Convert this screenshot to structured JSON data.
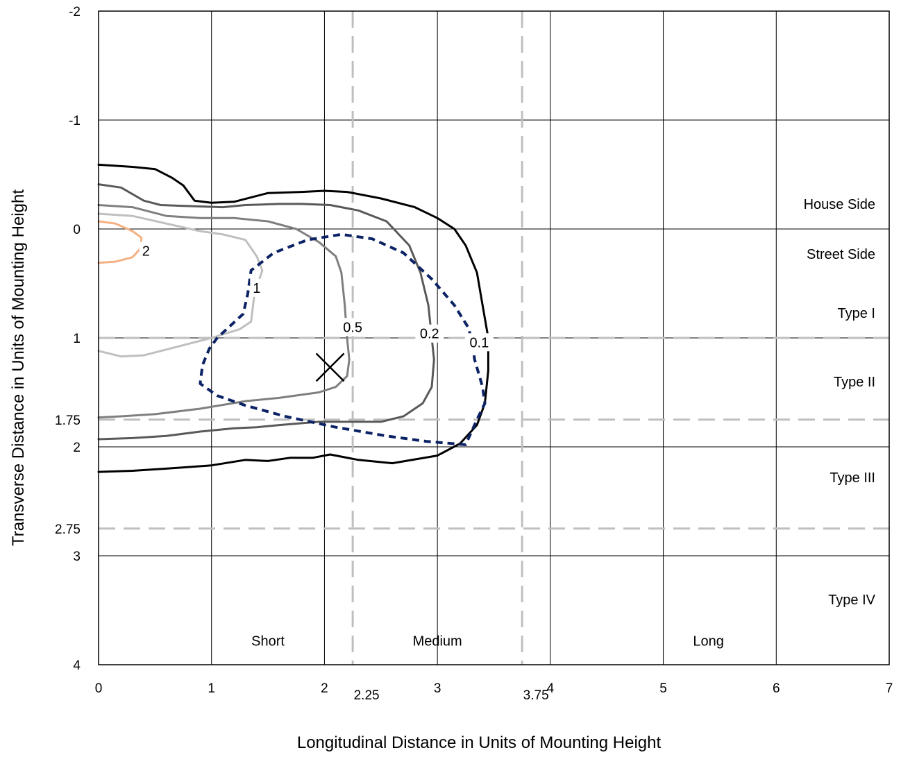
{
  "chart_data": {
    "type": "line",
    "subtype": "isofootcandle",
    "xlabel": "Longitudinal Distance in Units of Mounting Height",
    "ylabel": "Transverse Distance in Units of Mounting Height",
    "xlim": [
      0,
      7
    ],
    "ylim": [
      -2,
      4
    ],
    "y_inverted": true,
    "grid": true,
    "x_ticks": [
      0,
      1,
      2,
      3,
      4,
      5,
      6,
      7
    ],
    "y_ticks": [
      -2,
      -1,
      0,
      1,
      2,
      3,
      4
    ],
    "extra_x_ticks": [
      2.25,
      3.75
    ],
    "extra_y_ticks": [
      1.75,
      2.75
    ],
    "reference_lines": {
      "vertical": [
        2.25,
        3.75
      ],
      "horizontal": [
        1,
        1.75,
        2.75
      ],
      "color": "#bfbfbf"
    },
    "zone_labels": [
      {
        "text": "House Side",
        "x": 6.85,
        "y": -0.23
      },
      {
        "text": "Street Side",
        "x": 6.85,
        "y": 0.23
      },
      {
        "text": "Type I",
        "x": 6.85,
        "y": 0.77
      },
      {
        "text": "Type II",
        "x": 6.85,
        "y": 1.4
      },
      {
        "text": "Type III",
        "x": 6.85,
        "y": 2.28
      },
      {
        "text": "Type IV",
        "x": 6.85,
        "y": 3.4
      },
      {
        "text": "Short",
        "x": 1.5,
        "y": 3.78
      },
      {
        "text": "Medium",
        "x": 3.0,
        "y": 3.78
      },
      {
        "text": "Long",
        "x": 5.4,
        "y": 3.78
      }
    ],
    "max_candela_marker": {
      "x": 2.05,
      "y": 1.27
    },
    "max_candela_curve": {
      "color": "#0b2265",
      "points": [
        [
          3.3,
          1.0
        ],
        [
          3.27,
          0.9
        ],
        [
          3.15,
          0.7
        ],
        [
          2.95,
          0.46
        ],
        [
          2.7,
          0.22
        ],
        [
          2.42,
          0.09
        ],
        [
          2.15,
          0.05
        ],
        [
          1.85,
          0.1
        ],
        [
          1.55,
          0.22
        ],
        [
          1.35,
          0.38
        ],
        [
          1.32,
          0.6
        ],
        [
          1.28,
          0.78
        ],
        [
          1.05,
          1.0
        ],
        [
          0.98,
          1.1
        ],
        [
          0.92,
          1.25
        ],
        [
          0.9,
          1.42
        ],
        [
          1.05,
          1.53
        ],
        [
          1.3,
          1.62
        ],
        [
          1.65,
          1.72
        ],
        [
          2.1,
          1.82
        ],
        [
          2.55,
          1.9
        ],
        [
          2.9,
          1.95
        ],
        [
          3.25,
          1.98
        ],
        [
          3.35,
          1.75
        ],
        [
          3.42,
          1.6
        ],
        [
          3.4,
          1.45
        ],
        [
          3.33,
          1.2
        ],
        [
          3.3,
          1.0
        ]
      ]
    },
    "series": [
      {
        "name": "0.1",
        "color": "#000000",
        "label_pos": [
          3.37,
          1.04
        ],
        "points": [
          [
            0,
            -0.59
          ],
          [
            0.3,
            -0.57
          ],
          [
            0.5,
            -0.55
          ],
          [
            0.65,
            -0.47
          ],
          [
            0.75,
            -0.4
          ],
          [
            0.85,
            -0.26
          ],
          [
            1.0,
            -0.24
          ],
          [
            1.2,
            -0.25
          ],
          [
            1.5,
            -0.33
          ],
          [
            1.8,
            -0.34
          ],
          [
            2.0,
            -0.35
          ],
          [
            2.2,
            -0.34
          ],
          [
            2.5,
            -0.28
          ],
          [
            2.8,
            -0.2
          ],
          [
            3.0,
            -0.1
          ],
          [
            3.15,
            0.0
          ],
          [
            3.25,
            0.15
          ],
          [
            3.35,
            0.4
          ],
          [
            3.4,
            0.7
          ],
          [
            3.45,
            1.0
          ],
          [
            3.45,
            1.3
          ],
          [
            3.42,
            1.6
          ],
          [
            3.35,
            1.8
          ],
          [
            3.2,
            1.97
          ],
          [
            3.0,
            2.08
          ],
          [
            2.6,
            2.15
          ],
          [
            2.3,
            2.12
          ],
          [
            2.05,
            2.07
          ],
          [
            1.9,
            2.1
          ],
          [
            1.7,
            2.1
          ],
          [
            1.5,
            2.13
          ],
          [
            1.3,
            2.12
          ],
          [
            1.0,
            2.17
          ],
          [
            0.6,
            2.2
          ],
          [
            0.3,
            2.22
          ],
          [
            0,
            2.23
          ]
        ]
      },
      {
        "name": "0.2",
        "color": "#595959",
        "label_pos": [
          2.93,
          0.96
        ],
        "points": [
          [
            0,
            -0.41
          ],
          [
            0.2,
            -0.38
          ],
          [
            0.4,
            -0.26
          ],
          [
            0.55,
            -0.22
          ],
          [
            0.8,
            -0.21
          ],
          [
            1.1,
            -0.2
          ],
          [
            1.3,
            -0.22
          ],
          [
            1.6,
            -0.23
          ],
          [
            1.8,
            -0.23
          ],
          [
            2.05,
            -0.22
          ],
          [
            2.3,
            -0.17
          ],
          [
            2.55,
            -0.07
          ],
          [
            2.75,
            0.15
          ],
          [
            2.85,
            0.4
          ],
          [
            2.92,
            0.7
          ],
          [
            2.95,
            1.0
          ],
          [
            2.97,
            1.2
          ],
          [
            2.95,
            1.45
          ],
          [
            2.87,
            1.6
          ],
          [
            2.7,
            1.72
          ],
          [
            2.5,
            1.77
          ],
          [
            2.2,
            1.77
          ],
          [
            1.95,
            1.77
          ],
          [
            1.6,
            1.8
          ],
          [
            1.4,
            1.82
          ],
          [
            1.2,
            1.83
          ],
          [
            0.9,
            1.86
          ],
          [
            0.6,
            1.9
          ],
          [
            0.3,
            1.92
          ],
          [
            0,
            1.93
          ]
        ]
      },
      {
        "name": "0.5",
        "color": "#7f7f7f",
        "label_pos": [
          2.25,
          0.9
        ],
        "points": [
          [
            0,
            -0.22
          ],
          [
            0.3,
            -0.2
          ],
          [
            0.6,
            -0.12
          ],
          [
            0.9,
            -0.1
          ],
          [
            1.2,
            -0.1
          ],
          [
            1.5,
            -0.07
          ],
          [
            1.75,
            0.0
          ],
          [
            1.95,
            0.12
          ],
          [
            2.1,
            0.25
          ],
          [
            2.15,
            0.4
          ],
          [
            2.18,
            0.7
          ],
          [
            2.2,
            1.0
          ],
          [
            2.22,
            1.2
          ],
          [
            2.2,
            1.35
          ],
          [
            2.1,
            1.45
          ],
          [
            1.95,
            1.5
          ],
          [
            1.6,
            1.55
          ],
          [
            1.3,
            1.58
          ],
          [
            0.9,
            1.65
          ],
          [
            0.5,
            1.7
          ],
          [
            0.2,
            1.72
          ],
          [
            0,
            1.73
          ]
        ]
      },
      {
        "name": "1",
        "color": "#bfbfbf",
        "label_pos": [
          1.4,
          0.54
        ],
        "points": [
          [
            0,
            -0.14
          ],
          [
            0.3,
            -0.12
          ],
          [
            0.6,
            -0.05
          ],
          [
            0.9,
            0.02
          ],
          [
            1.1,
            0.05
          ],
          [
            1.3,
            0.1
          ],
          [
            1.4,
            0.25
          ],
          [
            1.45,
            0.38
          ],
          [
            1.38,
            0.6
          ],
          [
            1.35,
            0.85
          ],
          [
            1.25,
            0.92
          ],
          [
            1.0,
            1.0
          ],
          [
            0.7,
            1.08
          ],
          [
            0.4,
            1.16
          ],
          [
            0.2,
            1.17
          ],
          [
            0,
            1.12
          ]
        ]
      },
      {
        "name": "2",
        "color": "#f4b183",
        "label_pos": [
          0.42,
          0.2
        ],
        "points": [
          [
            0,
            -0.07
          ],
          [
            0.15,
            -0.05
          ],
          [
            0.3,
            0.02
          ],
          [
            0.38,
            0.08
          ],
          [
            0.37,
            0.18
          ],
          [
            0.3,
            0.26
          ],
          [
            0.15,
            0.3
          ],
          [
            0,
            0.31
          ]
        ]
      }
    ]
  }
}
